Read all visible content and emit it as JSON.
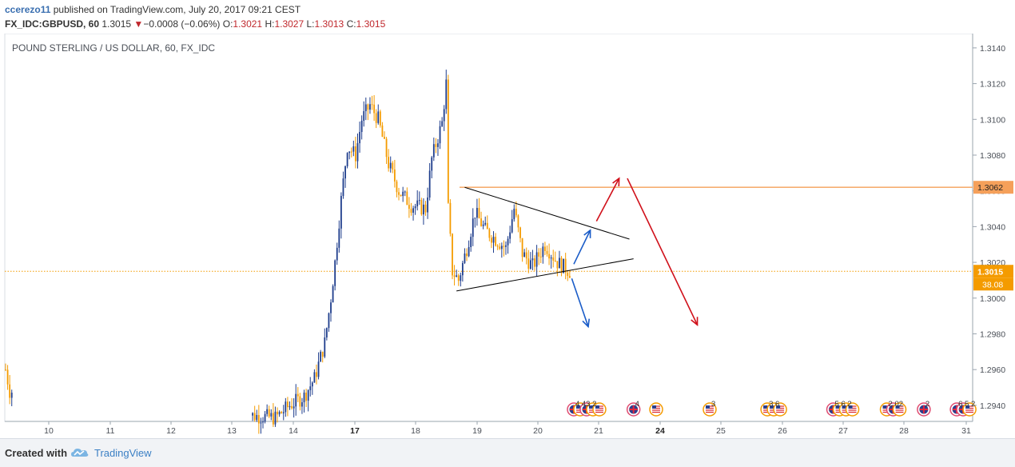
{
  "header": {
    "author": "ccerezo11",
    "published_text": "published on TradingView.com, July 20, 2017 09:21 CEST",
    "symbol": "FX_IDC:GBPUSD, 60",
    "last": "1.3015",
    "change_arrow": "▼",
    "change": "−0.0008 (−0.06%)",
    "o_label": "O:",
    "o": "1.3021",
    "h_label": "H:",
    "h": "1.3027",
    "l_label": "L:",
    "l": "1.3013",
    "c_label": "C:",
    "c": "1.3015"
  },
  "footer": {
    "created_with": "Created with",
    "brand": "TradingView",
    "logo_icon": "tradingview-cloud-icon"
  },
  "chart_data": {
    "type": "candlestick",
    "title": "POUND STERLING / US DOLLAR, 60, FX_IDC",
    "y_axis": {
      "ticks": [
        "1.3140",
        "1.3120",
        "1.3100",
        "1.3080",
        "1.3060",
        "1.3040",
        "1.3020",
        "1.3000",
        "1.2980",
        "1.2960",
        "1.2940"
      ],
      "range": [
        1.2931,
        1.3148
      ],
      "position": "right"
    },
    "x_axis": {
      "ticks": [
        {
          "label": "10",
          "bold": false
        },
        {
          "label": "11",
          "bold": false
        },
        {
          "label": "12",
          "bold": false
        },
        {
          "label": "13",
          "bold": false
        },
        {
          "label": "14",
          "bold": false
        },
        {
          "label": "17",
          "bold": true
        },
        {
          "label": "18",
          "bold": false
        },
        {
          "label": "19",
          "bold": false
        },
        {
          "label": "20",
          "bold": false
        },
        {
          "label": "21",
          "bold": false
        },
        {
          "label": "24",
          "bold": true
        },
        {
          "label": "25",
          "bold": false
        },
        {
          "label": "26",
          "bold": false
        },
        {
          "label": "27",
          "bold": false
        },
        {
          "label": "28",
          "bold": false
        },
        {
          "label": "31",
          "bold": false
        }
      ]
    },
    "price_labels": {
      "resistance": {
        "value": 1.3062,
        "text": "1.3062",
        "color": "#f5a05a"
      },
      "last": {
        "value": 1.3015,
        "text": "1.3015",
        "color": "#f49b00"
      },
      "countdown": {
        "text": "38.08"
      }
    },
    "colors": {
      "up": "#1e3d8c",
      "down": "#f49b00",
      "arrow_up": "#d0101a",
      "arrow_blue": "#1a5cc8",
      "resistance": "#f5a05a"
    },
    "anchors": [
      {
        "t": 0,
        "p": 1.296
      },
      {
        "t": 2,
        "p": 1.2948
      },
      {
        "t": 131,
        "p": 1.2933
      },
      {
        "t": 138,
        "p": 1.294
      },
      {
        "t": 145,
        "p": 1.2945
      },
      {
        "t": 150,
        "p": 1.2955
      },
      {
        "t": 155,
        "p": 1.2975
      },
      {
        "t": 158,
        "p": 1.3
      },
      {
        "t": 160,
        "p": 1.302
      },
      {
        "t": 163,
        "p": 1.3055
      },
      {
        "t": 166,
        "p": 1.3085
      },
      {
        "t": 170,
        "p": 1.308
      },
      {
        "t": 173,
        "p": 1.31
      },
      {
        "t": 177,
        "p": 1.3108
      },
      {
        "t": 181,
        "p": 1.31
      },
      {
        "t": 186,
        "p": 1.3075
      },
      {
        "t": 191,
        "p": 1.306
      },
      {
        "t": 197,
        "p": 1.3052
      },
      {
        "t": 204,
        "p": 1.305
      },
      {
        "t": 207,
        "p": 1.3078
      },
      {
        "t": 212,
        "p": 1.3098
      },
      {
        "t": 214,
        "p": 1.312
      },
      {
        "t": 215,
        "p": 1.305
      },
      {
        "t": 217,
        "p": 1.3015
      },
      {
        "t": 220,
        "p": 1.301
      },
      {
        "t": 224,
        "p": 1.3028
      },
      {
        "t": 228,
        "p": 1.3048
      },
      {
        "t": 233,
        "p": 1.3038
      },
      {
        "t": 238,
        "p": 1.3033
      },
      {
        "t": 243,
        "p": 1.3028
      },
      {
        "t": 247,
        "p": 1.305
      },
      {
        "t": 251,
        "p": 1.3025
      },
      {
        "t": 256,
        "p": 1.3018
      },
      {
        "t": 262,
        "p": 1.303
      },
      {
        "t": 268,
        "p": 1.302
      },
      {
        "t": 274,
        "p": 1.3015
      }
    ],
    "drawings": {
      "triangle_upper": {
        "from": {
          "t": 223,
          "p": 1.3062
        },
        "to": {
          "t": 303,
          "p": 1.3033
        }
      },
      "triangle_lower": {
        "from": {
          "t": 219,
          "p": 1.3004
        },
        "to": {
          "t": 305,
          "p": 1.3022
        }
      },
      "arrow_blue_up": {
        "from": {
          "t": 276,
          "p": 1.3019
        },
        "to": {
          "t": 284,
          "p": 1.3038
        }
      },
      "arrow_blue_down": {
        "from": {
          "t": 275,
          "p": 1.3011
        },
        "to": {
          "t": 283,
          "p": 1.2984
        }
      },
      "arrow_red_up": {
        "from": {
          "t": 287,
          "p": 1.3043
        },
        "to": {
          "t": 298,
          "p": 1.3067
        }
      },
      "arrow_red_down": {
        "from": {
          "t": 302,
          "p": 1.3067
        },
        "to": {
          "t": 336,
          "p": 1.2985
        }
      }
    },
    "event_groups": [
      {
        "t": 276,
        "label": "4 43 2",
        "flags": [
          "uk",
          "us",
          "uk",
          "us",
          "us"
        ]
      },
      {
        "t": 305,
        "label": "4",
        "flags": [
          "uk"
        ]
      },
      {
        "t": 316,
        "label": "",
        "flags": [
          "us"
        ]
      },
      {
        "t": 342,
        "label": "3",
        "flags": [
          "us"
        ]
      },
      {
        "t": 370,
        "label": "3 6",
        "flags": [
          "us",
          "us",
          "us"
        ]
      },
      {
        "t": 402,
        "label": "5 6 2",
        "flags": [
          "uk",
          "us",
          "us",
          "us"
        ]
      },
      {
        "t": 428,
        "label": "2 02",
        "flags": [
          "us",
          "uk",
          "us"
        ]
      },
      {
        "t": 446,
        "label": "2",
        "flags": [
          "uk"
        ]
      },
      {
        "t": 462,
        "label": "6 5 2",
        "flags": [
          "uk",
          "uk",
          "us"
        ]
      }
    ]
  }
}
